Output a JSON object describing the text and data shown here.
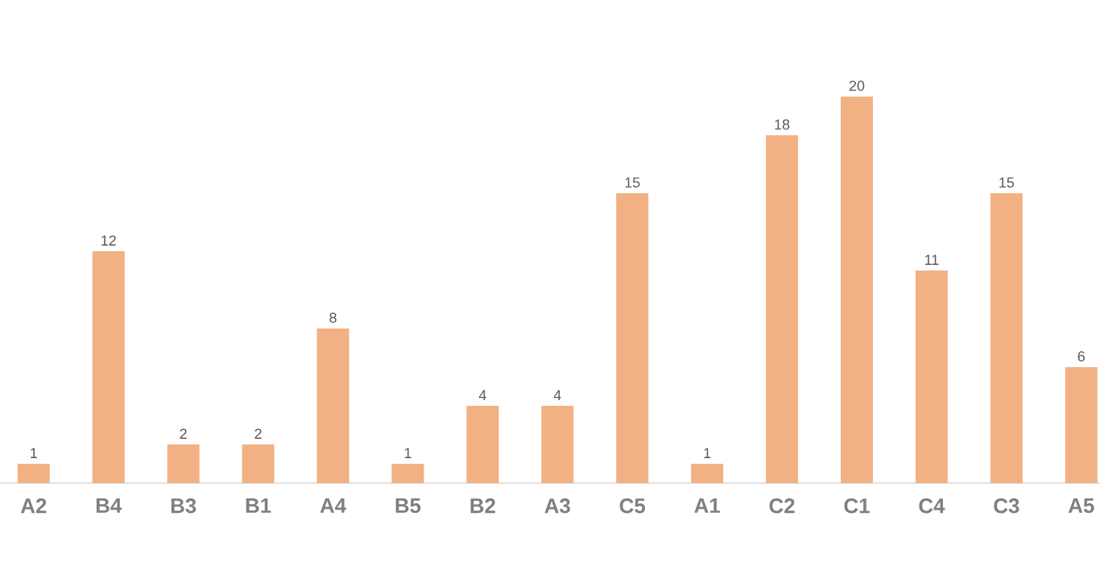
{
  "chart_data": {
    "type": "bar",
    "categories": [
      "A2",
      "B4",
      "B3",
      "B1",
      "A4",
      "B5",
      "B2",
      "A3",
      "C5",
      "A1",
      "C2",
      "C1",
      "C4",
      "C3",
      "A5"
    ],
    "values": [
      1,
      12,
      2,
      2,
      8,
      1,
      4,
      4,
      15,
      1,
      18,
      20,
      11,
      15,
      6
    ],
    "color": "#f2b183",
    "data_labels": true
  }
}
